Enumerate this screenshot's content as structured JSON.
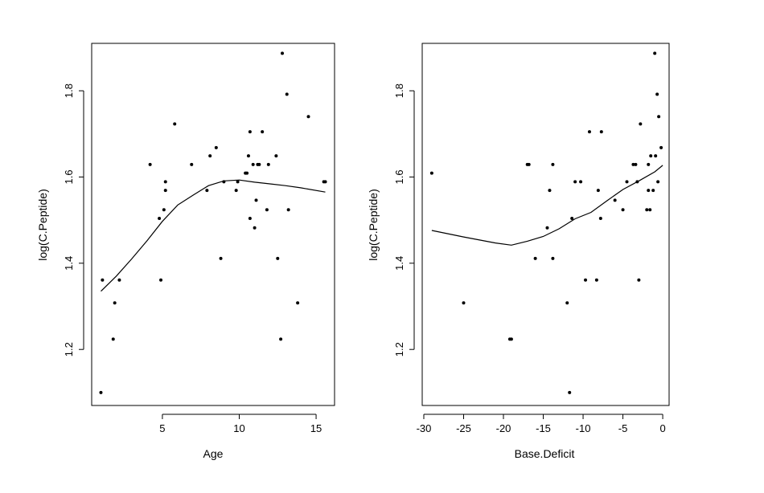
{
  "chart_data": [
    {
      "type": "scatter",
      "xlabel": "Age",
      "ylabel": "log(C.Peptide)",
      "xlim": [
        0.4,
        16.2
      ],
      "ylim": [
        1.07,
        1.91
      ],
      "xticks": [
        5,
        10,
        15
      ],
      "yticks": [
        1.2,
        1.4,
        1.6,
        1.8
      ],
      "grid": false,
      "points": [
        [
          1.0,
          1.1
        ],
        [
          1.1,
          1.361
        ],
        [
          1.8,
          1.224
        ],
        [
          1.9,
          1.308
        ],
        [
          2.2,
          1.361
        ],
        [
          4.2,
          1.629
        ],
        [
          4.8,
          1.504
        ],
        [
          4.9,
          1.361
        ],
        [
          5.1,
          1.524
        ],
        [
          5.2,
          1.569
        ],
        [
          5.2,
          1.589
        ],
        [
          5.8,
          1.723
        ],
        [
          6.9,
          1.629
        ],
        [
          7.9,
          1.569
        ],
        [
          8.1,
          1.649
        ],
        [
          8.5,
          1.668
        ],
        [
          8.8,
          1.411
        ],
        [
          9.0,
          1.589
        ],
        [
          9.8,
          1.569
        ],
        [
          9.9,
          1.589
        ],
        [
          10.4,
          1.609
        ],
        [
          10.5,
          1.609
        ],
        [
          10.6,
          1.649
        ],
        [
          10.7,
          1.705
        ],
        [
          10.7,
          1.504
        ],
        [
          10.9,
          1.629
        ],
        [
          11.0,
          1.482
        ],
        [
          11.1,
          1.546
        ],
        [
          11.2,
          1.629
        ],
        [
          11.3,
          1.629
        ],
        [
          11.5,
          1.705
        ],
        [
          11.8,
          1.524
        ],
        [
          11.9,
          1.629
        ],
        [
          12.4,
          1.649
        ],
        [
          12.5,
          1.411
        ],
        [
          12.7,
          1.224
        ],
        [
          12.8,
          1.887
        ],
        [
          13.1,
          1.792
        ],
        [
          13.2,
          1.524
        ],
        [
          13.8,
          1.308
        ],
        [
          14.5,
          1.74
        ],
        [
          15.5,
          1.589
        ],
        [
          15.6,
          1.589
        ]
      ],
      "smooth": [
        [
          1.0,
          1.335
        ],
        [
          2.0,
          1.37
        ],
        [
          3.0,
          1.41
        ],
        [
          4.0,
          1.452
        ],
        [
          5.0,
          1.497
        ],
        [
          6.0,
          1.535
        ],
        [
          7.0,
          1.558
        ],
        [
          8.0,
          1.58
        ],
        [
          9.0,
          1.591
        ],
        [
          10.0,
          1.593
        ],
        [
          11.0,
          1.588
        ],
        [
          12.0,
          1.584
        ],
        [
          13.0,
          1.58
        ],
        [
          14.0,
          1.575
        ],
        [
          15.6,
          1.565
        ]
      ]
    },
    {
      "type": "scatter",
      "xlabel": "Base.Deficit",
      "ylabel": "log(C.Peptide)",
      "xlim": [
        -30.2,
        0.8
      ],
      "ylim": [
        1.07,
        1.91
      ],
      "xticks": [
        -30,
        -25,
        -20,
        -15,
        -10,
        -5,
        0
      ],
      "yticks": [
        1.2,
        1.4,
        1.6,
        1.8
      ],
      "grid": false,
      "points": [
        [
          -29.0,
          1.609
        ],
        [
          -25.0,
          1.308
        ],
        [
          -19.2,
          1.224
        ],
        [
          -19.0,
          1.224
        ],
        [
          -17.0,
          1.629
        ],
        [
          -16.8,
          1.629
        ],
        [
          -16.0,
          1.411
        ],
        [
          -14.5,
          1.482
        ],
        [
          -14.2,
          1.569
        ],
        [
          -13.8,
          1.411
        ],
        [
          -13.8,
          1.629
        ],
        [
          -12.0,
          1.308
        ],
        [
          -11.7,
          1.1
        ],
        [
          -11.4,
          1.504
        ],
        [
          -11.0,
          1.589
        ],
        [
          -10.3,
          1.589
        ],
        [
          -9.7,
          1.361
        ],
        [
          -9.2,
          1.705
        ],
        [
          -8.3,
          1.361
        ],
        [
          -8.1,
          1.569
        ],
        [
          -7.8,
          1.504
        ],
        [
          -7.7,
          1.705
        ],
        [
          -6.0,
          1.546
        ],
        [
          -5.0,
          1.524
        ],
        [
          -4.5,
          1.589
        ],
        [
          -3.7,
          1.629
        ],
        [
          -3.4,
          1.629
        ],
        [
          -3.2,
          1.589
        ],
        [
          -3.0,
          1.361
        ],
        [
          -2.8,
          1.723
        ],
        [
          -2.0,
          1.524
        ],
        [
          -1.8,
          1.569
        ],
        [
          -1.8,
          1.629
        ],
        [
          -1.6,
          1.524
        ],
        [
          -1.5,
          1.649
        ],
        [
          -1.2,
          1.569
        ],
        [
          -1.0,
          1.887
        ],
        [
          -0.9,
          1.649
        ],
        [
          -0.7,
          1.792
        ],
        [
          -0.6,
          1.589
        ],
        [
          -0.5,
          1.74
        ],
        [
          -0.2,
          1.668
        ]
      ],
      "smooth": [
        [
          -29.0,
          1.476
        ],
        [
          -25.0,
          1.461
        ],
        [
          -21.0,
          1.447
        ],
        [
          -19.0,
          1.442
        ],
        [
          -17.0,
          1.451
        ],
        [
          -15.0,
          1.462
        ],
        [
          -13.0,
          1.48
        ],
        [
          -11.0,
          1.503
        ],
        [
          -9.0,
          1.518
        ],
        [
          -7.0,
          1.545
        ],
        [
          -5.0,
          1.571
        ],
        [
          -3.0,
          1.591
        ],
        [
          -1.0,
          1.612
        ],
        [
          0.0,
          1.627
        ]
      ]
    }
  ]
}
